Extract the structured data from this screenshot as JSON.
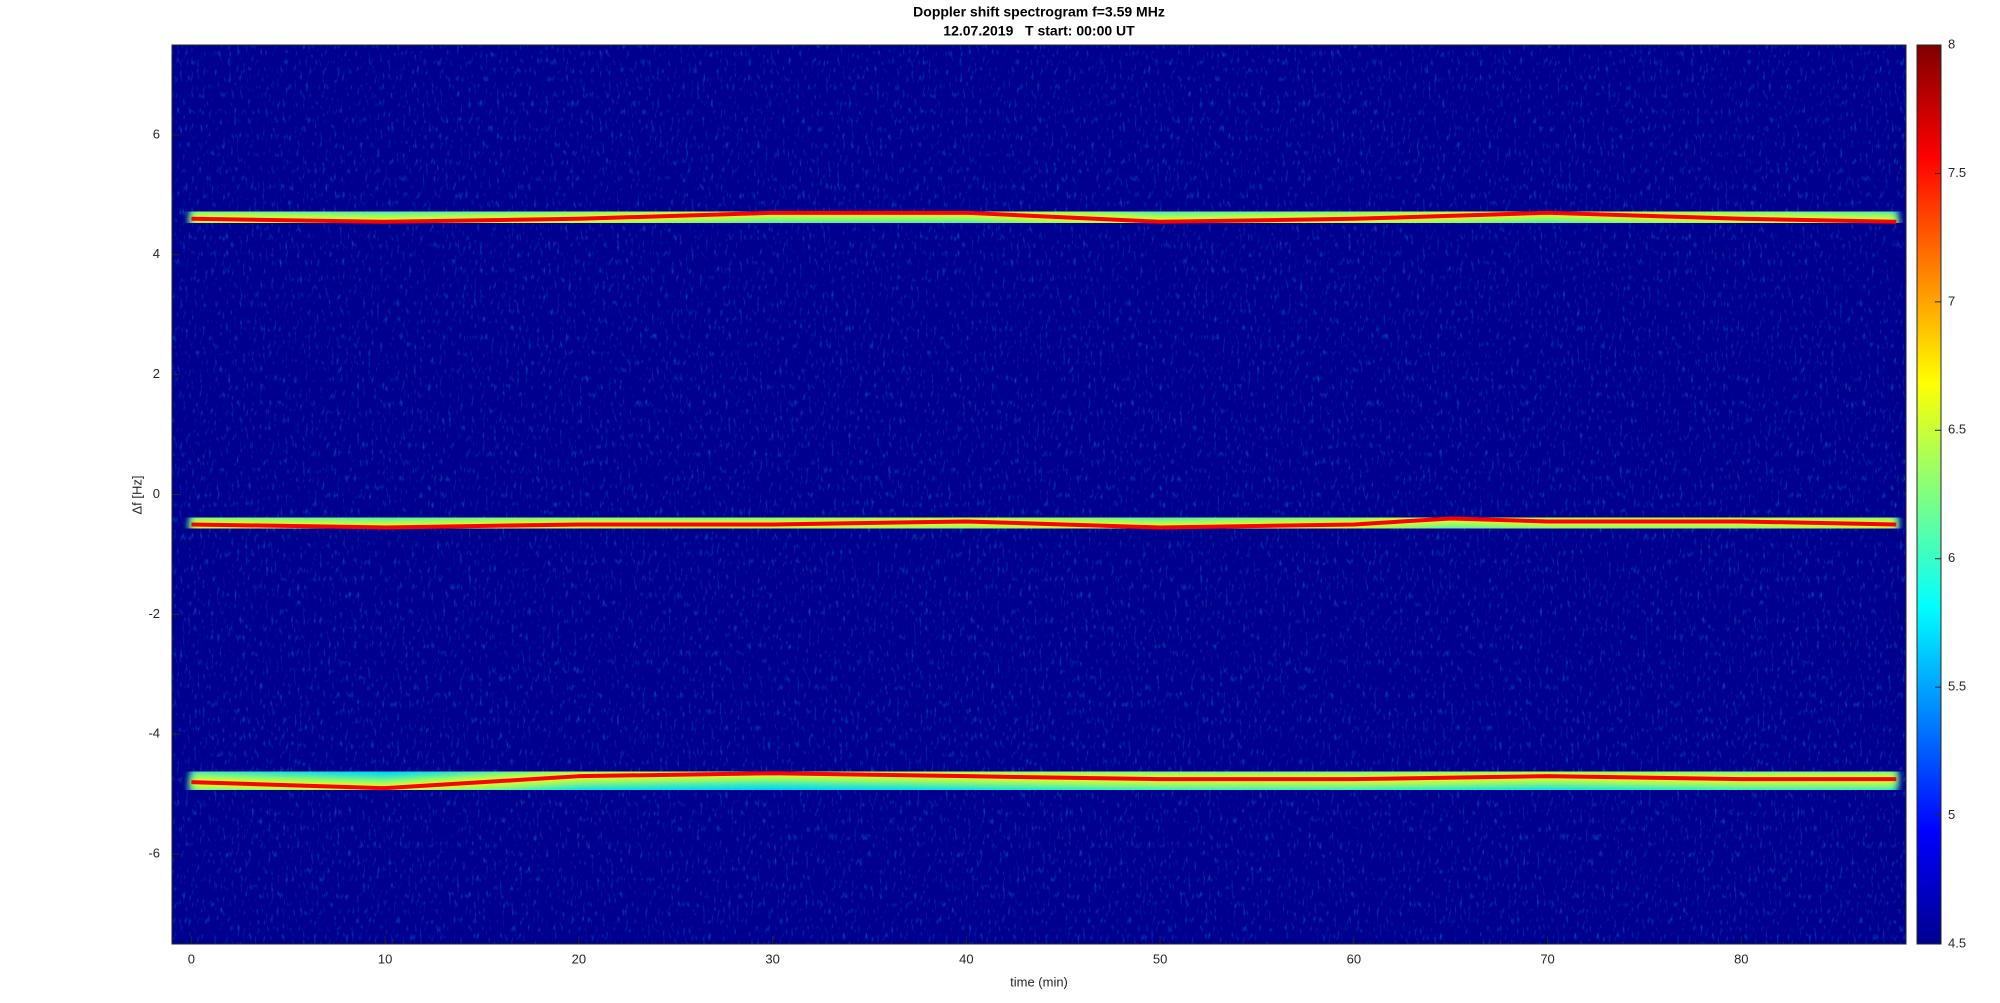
{
  "chart_data": {
    "type": "spectrogram",
    "title": "Doppler shift spectrogram f=3.59 MHz",
    "subtitle": "12.07.2019   T start: 00:00 UT",
    "x_label": "time (min)",
    "y_label": "Δf [Hz]",
    "xlim": [
      -1,
      88.5
    ],
    "ylim": [
      -7.5,
      7.5
    ],
    "xticks": [
      0,
      10,
      20,
      30,
      40,
      50,
      60,
      70,
      80
    ],
    "yticks": [
      -6,
      -4,
      -2,
      0,
      2,
      4,
      6
    ],
    "colormap": "jet",
    "clim": [
      4.5,
      8
    ],
    "cticks": [
      4.5,
      5,
      5.5,
      6,
      6.5,
      7,
      7.5,
      8
    ],
    "traces": [
      {
        "x": [
          0,
          10,
          20,
          30,
          40,
          50,
          60,
          70,
          80,
          88
        ],
        "y": [
          4.6,
          4.55,
          4.6,
          4.7,
          4.7,
          4.55,
          4.6,
          4.7,
          4.6,
          4.55
        ]
      },
      {
        "x": [
          0,
          10,
          20,
          30,
          40,
          50,
          60,
          65,
          70,
          80,
          88
        ],
        "y": [
          -0.5,
          -0.55,
          -0.5,
          -0.5,
          -0.45,
          -0.55,
          -0.5,
          -0.4,
          -0.45,
          -0.45,
          -0.5
        ]
      },
      {
        "x": [
          0,
          10,
          20,
          30,
          40,
          50,
          60,
          70,
          80,
          88
        ],
        "y": [
          -4.8,
          -4.9,
          -4.7,
          -4.65,
          -4.7,
          -4.75,
          -4.75,
          -4.7,
          -4.75,
          -4.75
        ]
      }
    ]
  }
}
